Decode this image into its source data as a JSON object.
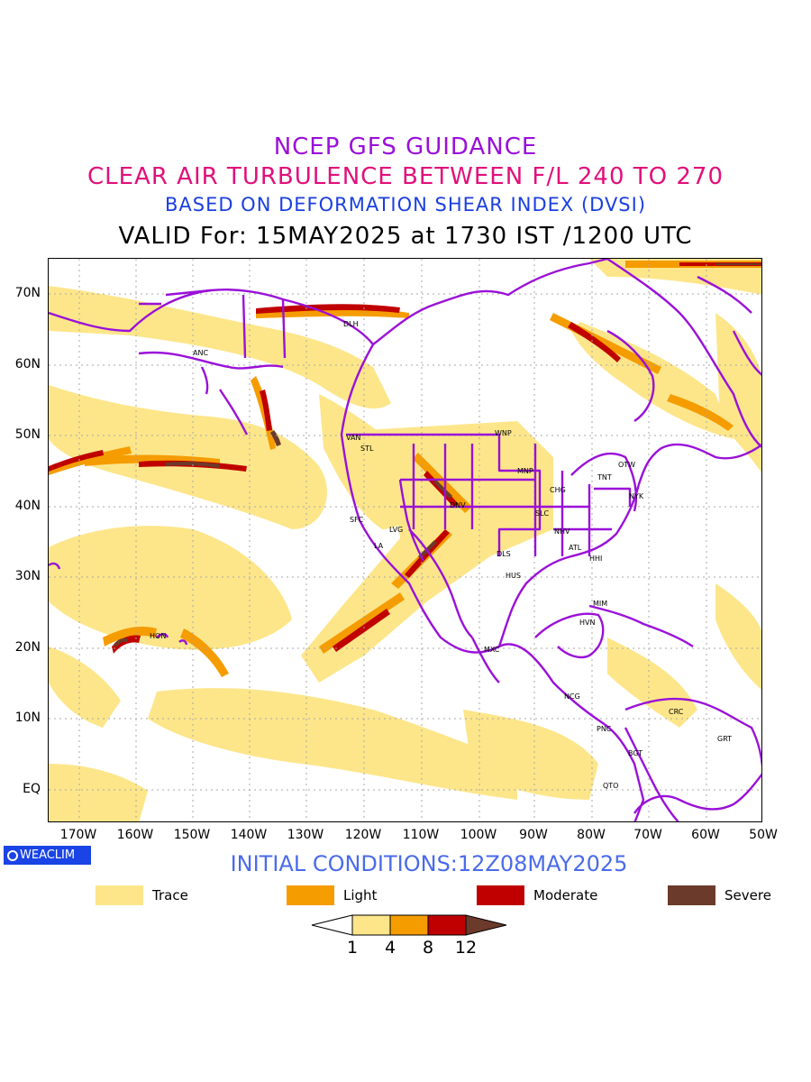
{
  "titles": {
    "line1": "NCEP GFS GUIDANCE",
    "line2": "CLEAR AIR TURBULENCE BETWEEN F/L 240 TO 270",
    "line3": "BASED ON DEFORMATION SHEAR INDEX (DVSI)",
    "line4": "VALID For: 15MAY2025 at 1730 IST /1200 UTC"
  },
  "map": {
    "lat_labels": [
      "70N",
      "60N",
      "50N",
      "40N",
      "30N",
      "20N",
      "10N",
      "EQ"
    ],
    "lon_labels": [
      "170W",
      "160W",
      "150W",
      "140W",
      "130W",
      "120W",
      "110W",
      "100W",
      "90W",
      "80W",
      "70W",
      "60W",
      "50W"
    ],
    "cities": [
      "ANC",
      "DLH",
      "VAN",
      "STL",
      "WNP",
      "MNP",
      "OTW",
      "TNT",
      "NYK",
      "CHG",
      "DNV",
      "SFC",
      "LVG",
      "LA",
      "SLC",
      "NHV",
      "ATL",
      "HHI",
      "DLS",
      "HUS",
      "MIM",
      "HVN",
      "HON",
      "MXC",
      "NCG",
      "PNC",
      "BGT",
      "CRC",
      "GRT",
      "QTO"
    ],
    "colors": {
      "coastline": "#9a10d8",
      "trace": "#fde68a",
      "light": "#f59c00",
      "moderate": "#c00000",
      "severe": "#6b3a2a"
    }
  },
  "footer": {
    "brand": "WEACLIM",
    "initial_conditions": "INITIAL CONDITIONS:12Z08MAY2025"
  },
  "legend": {
    "items": [
      {
        "label": "Trace",
        "color": "#fde68a"
      },
      {
        "label": "Light",
        "color": "#f59c00"
      },
      {
        "label": "Moderate",
        "color": "#c00000"
      },
      {
        "label": "Severe",
        "color": "#6b3a2a"
      }
    ],
    "ticks": [
      "1",
      "4",
      "8",
      "12"
    ]
  }
}
